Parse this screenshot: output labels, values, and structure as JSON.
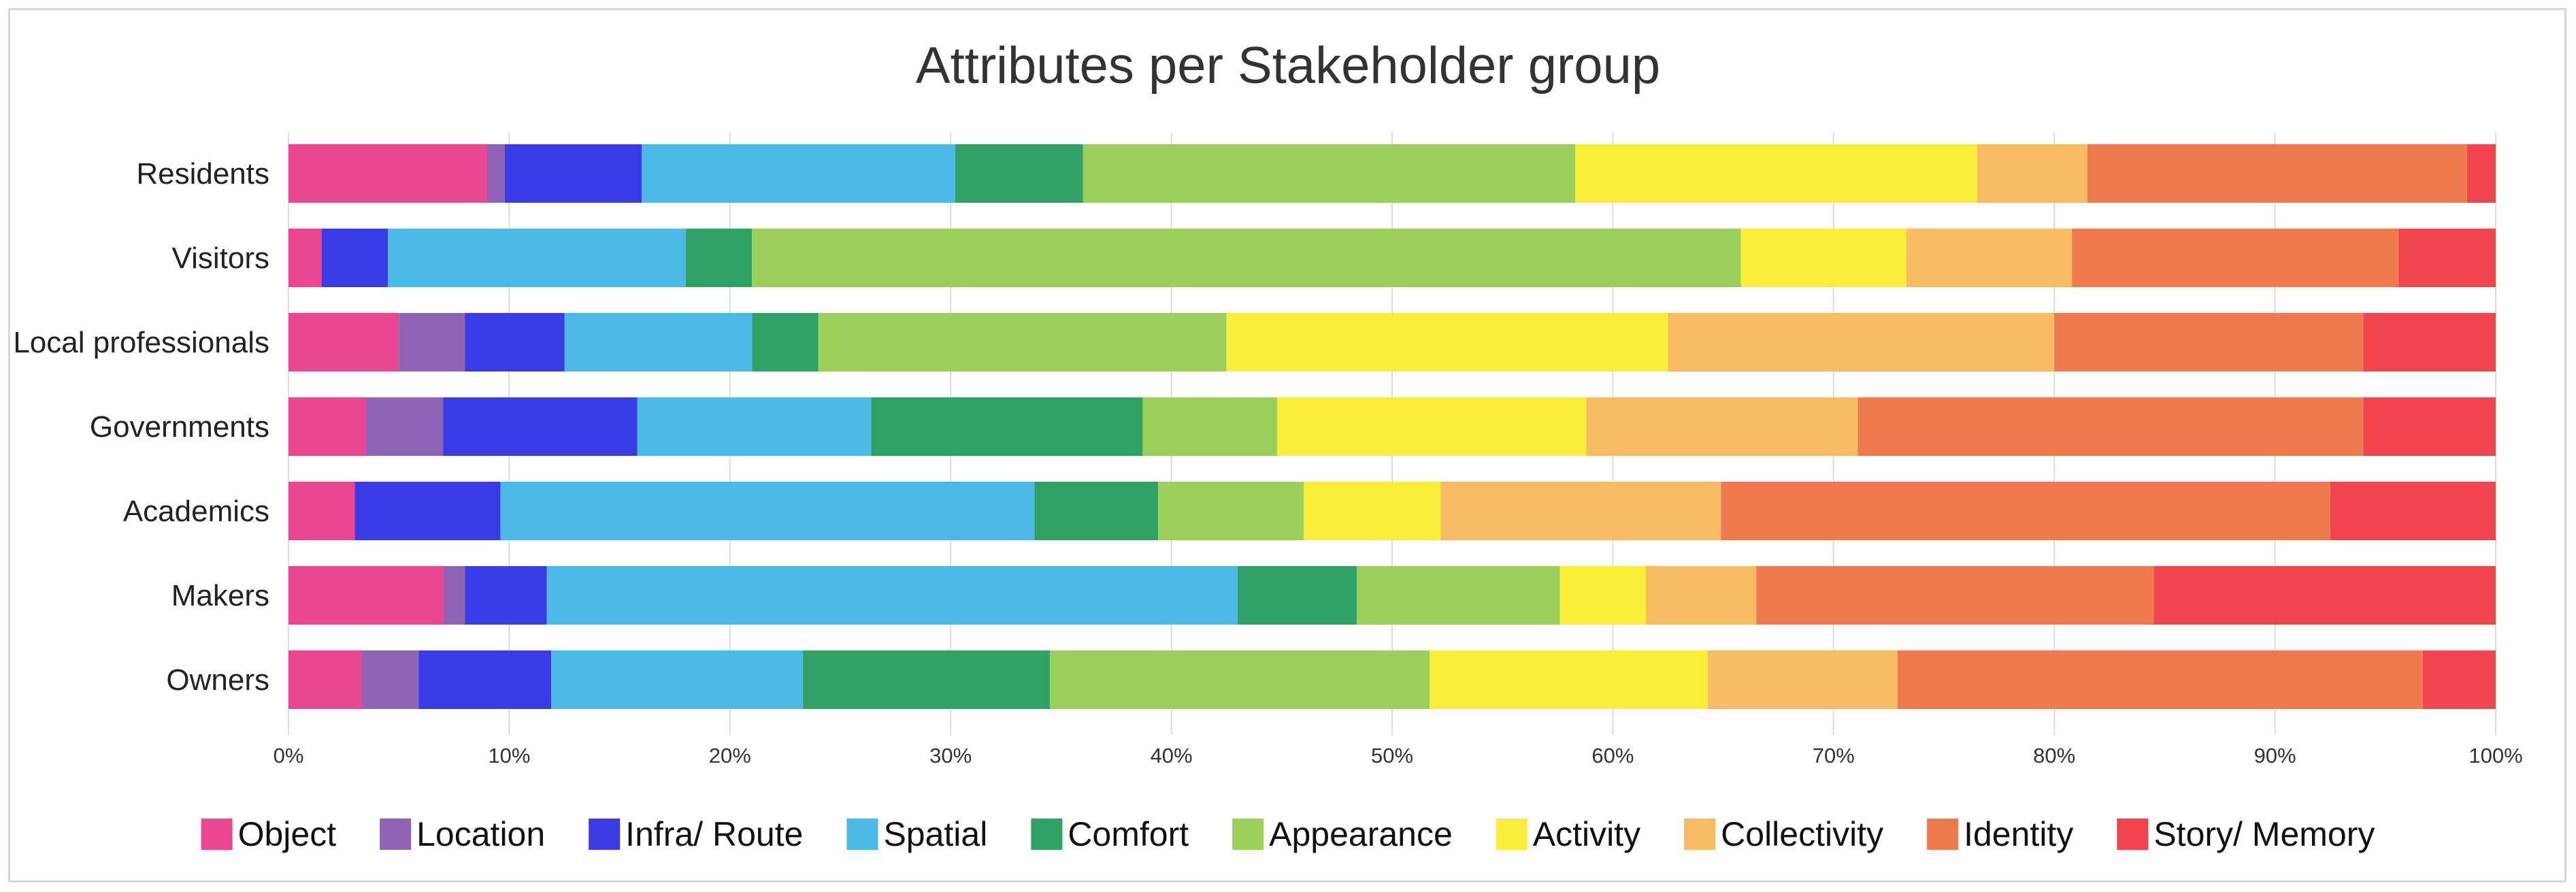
{
  "chart_data": {
    "type": "bar",
    "orientation": "horizontal",
    "stacked": true,
    "normalized": true,
    "title": "Attributes per Stakeholder group",
    "xlabel": "",
    "ylabel": "",
    "xlim": [
      0,
      100
    ],
    "x_ticks": [
      "0%",
      "10%",
      "20%",
      "30%",
      "40%",
      "50%",
      "60%",
      "70%",
      "80%",
      "90%",
      "100%"
    ],
    "grid": true,
    "legend_position": "bottom",
    "categories": [
      "Residents",
      "Visitors",
      "Local professionals",
      "Governments",
      "Academics",
      "Makers",
      "Owners"
    ],
    "series": [
      {
        "name": "Object",
        "color": "#e8488f",
        "values": [
          9.0,
          1.5,
          5.0,
          3.5,
          3.0,
          7.0,
          3.3
        ]
      },
      {
        "name": "Location",
        "color": "#8e65b6",
        "values": [
          0.8,
          0.0,
          3.0,
          3.5,
          0.0,
          1.0,
          2.6
        ]
      },
      {
        "name": "Infra/ Route",
        "color": "#3a3ae6",
        "values": [
          6.2,
          3.0,
          4.5,
          8.8,
          6.6,
          3.7,
          6.0
        ]
      },
      {
        "name": "Spatial",
        "color": "#4cb9e6",
        "values": [
          14.2,
          13.5,
          8.5,
          10.6,
          24.2,
          31.3,
          11.4
        ]
      },
      {
        "name": "Comfort",
        "color": "#2ea163",
        "values": [
          5.8,
          3.0,
          3.0,
          12.3,
          5.6,
          5.4,
          11.2
        ]
      },
      {
        "name": "Appearance",
        "color": "#9ccf59",
        "values": [
          22.3,
          44.8,
          18.5,
          6.1,
          6.6,
          9.2,
          17.2
        ]
      },
      {
        "name": "Activity",
        "color": "#faee3a",
        "values": [
          18.2,
          7.5,
          20.0,
          14.0,
          6.2,
          3.9,
          12.6
        ]
      },
      {
        "name": "Collectivity",
        "color": "#f8bb63",
        "values": [
          5.0,
          7.5,
          17.5,
          12.3,
          12.7,
          5.0,
          8.6
        ]
      },
      {
        "name": "Identity",
        "color": "#ee7b4e",
        "values": [
          17.2,
          14.8,
          14.0,
          22.9,
          27.6,
          18.0,
          23.8
        ]
      },
      {
        "name": "Story/ Memory",
        "color": "#f2444e",
        "values": [
          1.3,
          4.4,
          6.0,
          6.0,
          7.5,
          15.5,
          3.3
        ]
      }
    ]
  }
}
